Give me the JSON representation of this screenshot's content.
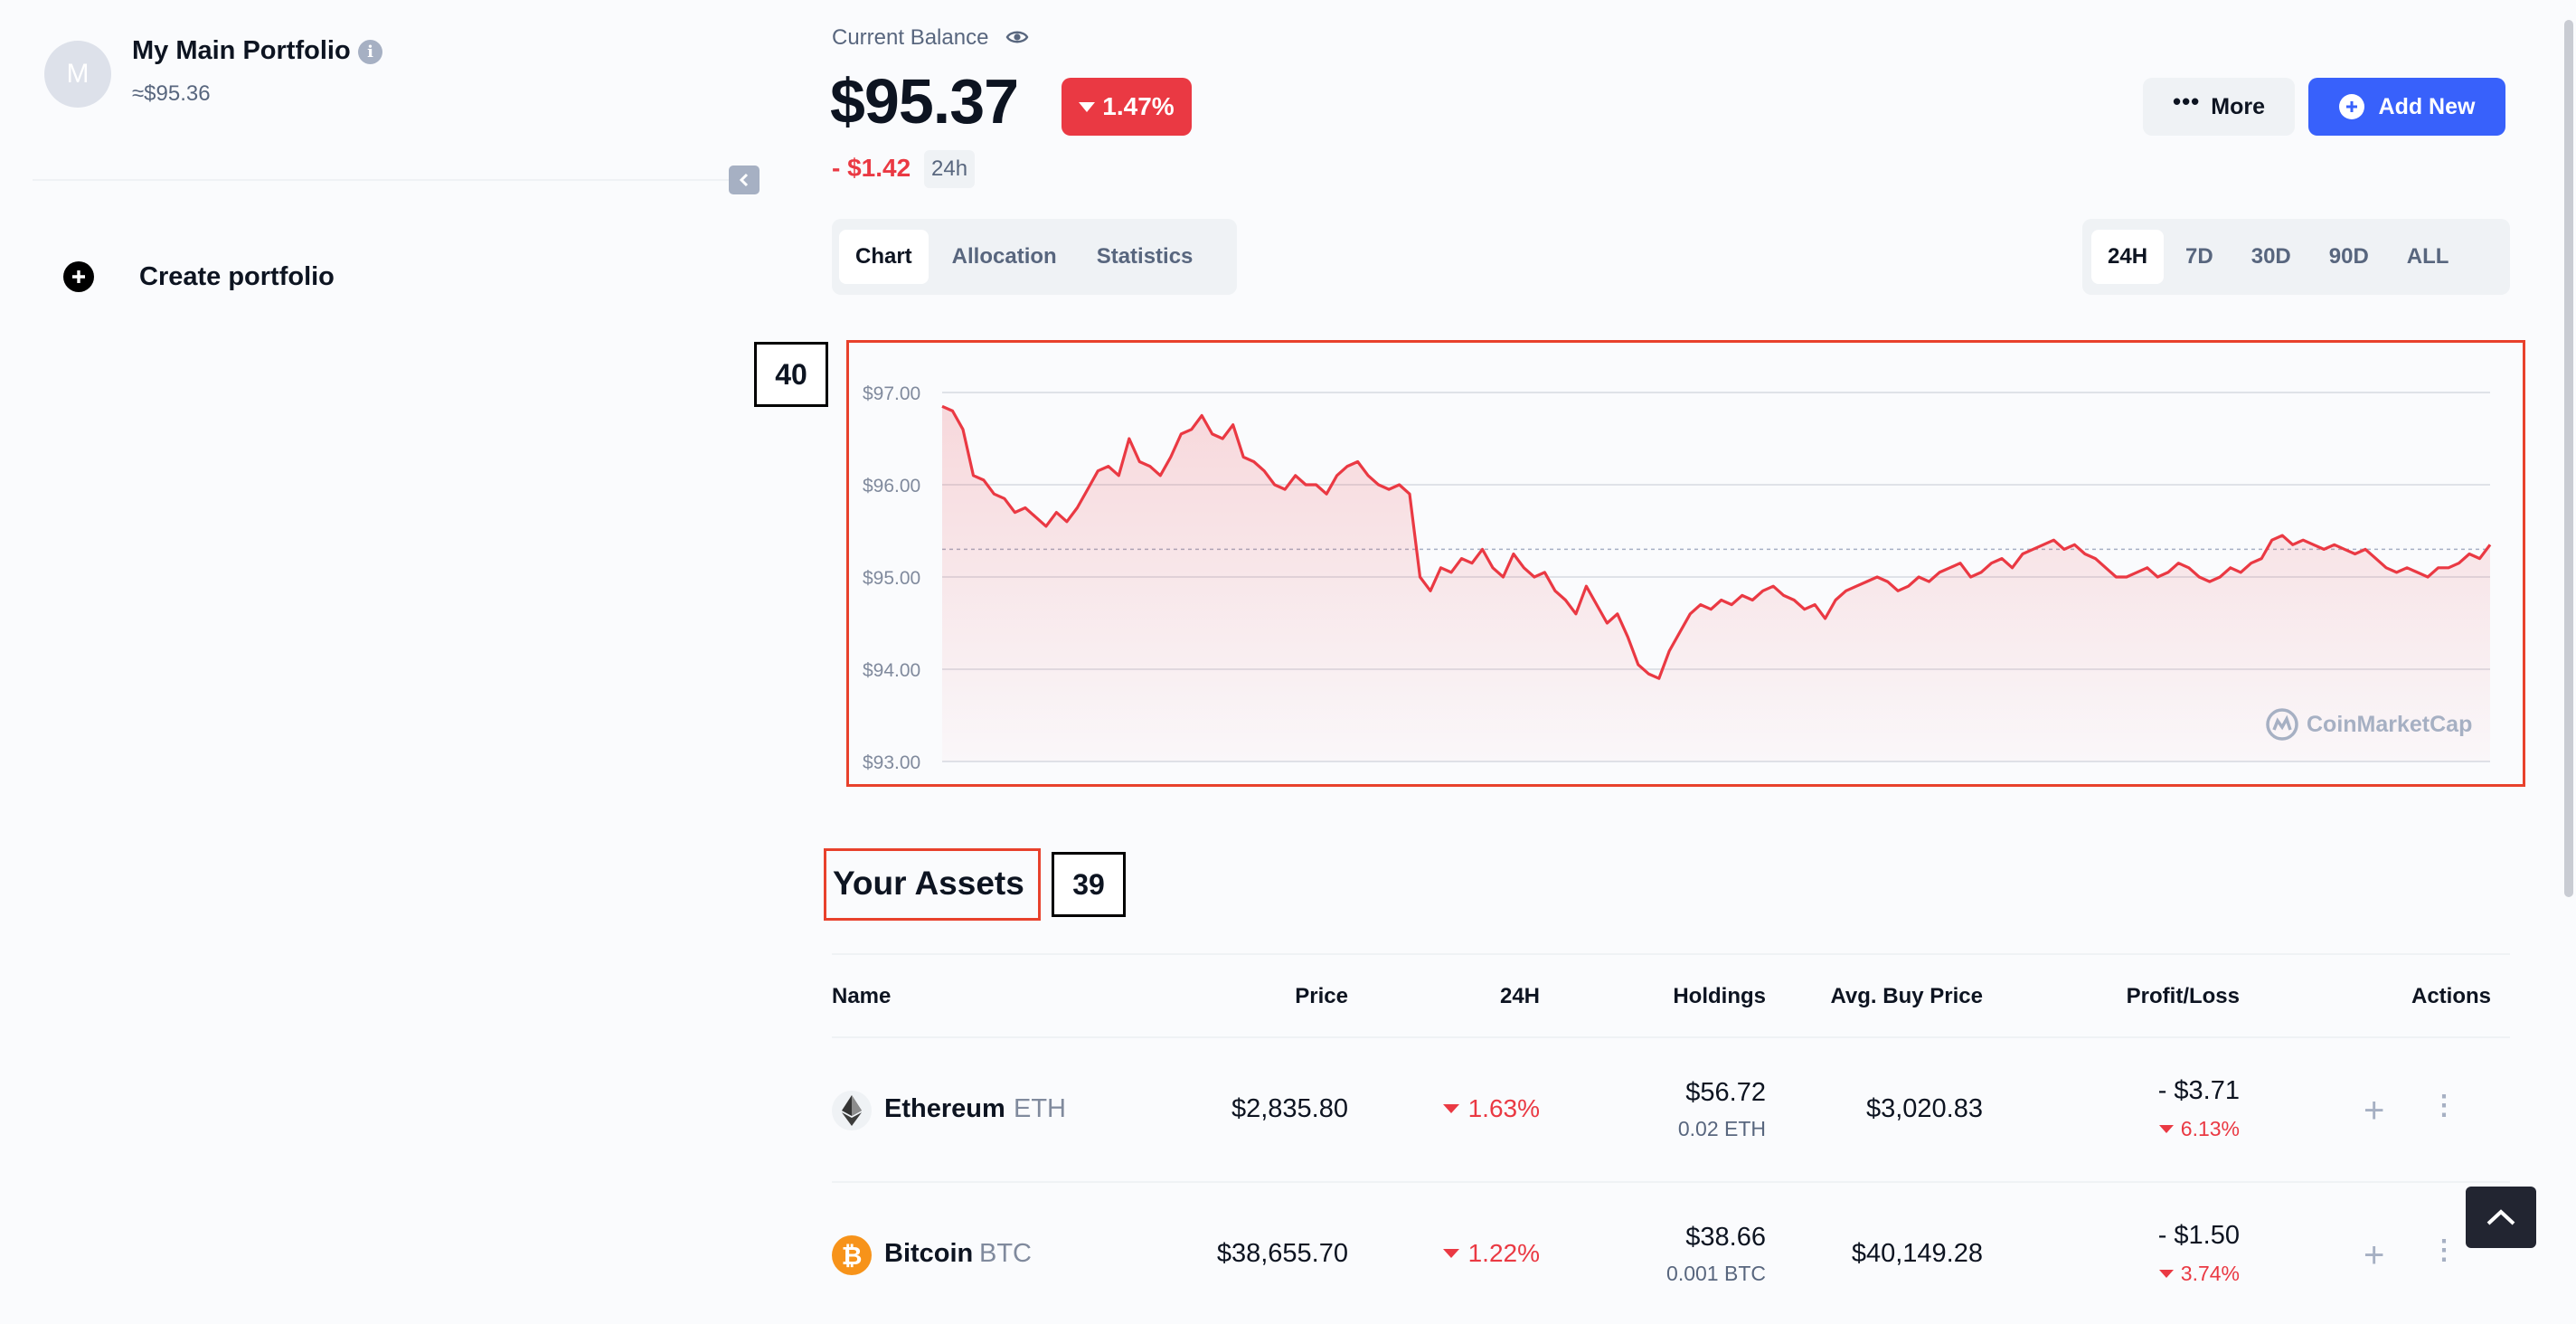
{
  "sidebar": {
    "avatar_letter": "M",
    "portfolio_name": "My Main Portfolio",
    "portfolio_value": "≈$95.36",
    "create_label": "Create portfolio",
    "info_glyph": "i"
  },
  "header": {
    "balance_label": "Current Balance",
    "balance": "$95.37",
    "change_pct": "1.47%",
    "delta": "- $1.42",
    "delta_period": "24h",
    "more_label": "More",
    "add_label": "Add New"
  },
  "tabs": [
    {
      "label": "Chart",
      "active": true
    },
    {
      "label": "Allocation",
      "active": false
    },
    {
      "label": "Statistics",
      "active": false
    }
  ],
  "ranges": [
    {
      "label": "24H",
      "active": true
    },
    {
      "label": "7D",
      "active": false
    },
    {
      "label": "30D",
      "active": false
    },
    {
      "label": "90D",
      "active": false
    },
    {
      "label": "ALL",
      "active": false
    }
  ],
  "annotations": {
    "chart_tag": "40",
    "assets_tag": "39"
  },
  "chart_data": {
    "type": "area",
    "y_ticks": [
      "$97.00",
      "$96.00",
      "$95.00",
      "$94.00",
      "$93.00"
    ],
    "ylim": [
      93,
      97
    ],
    "reference_value": 95.3,
    "color": "#ea3943",
    "watermark": "CoinMarketCap",
    "values": [
      96.85,
      96.8,
      96.6,
      96.1,
      96.05,
      95.9,
      95.85,
      95.7,
      95.75,
      95.65,
      95.55,
      95.7,
      95.6,
      95.75,
      95.95,
      96.15,
      96.2,
      96.1,
      96.5,
      96.25,
      96.2,
      96.1,
      96.3,
      96.55,
      96.6,
      96.75,
      96.55,
      96.5,
      96.65,
      96.3,
      96.25,
      96.15,
      96.0,
      95.95,
      96.1,
      96.0,
      96.0,
      95.9,
      96.1,
      96.2,
      96.25,
      96.1,
      96.0,
      95.95,
      96.0,
      95.9,
      95.0,
      94.85,
      95.1,
      95.05,
      95.2,
      95.15,
      95.3,
      95.1,
      95.0,
      95.25,
      95.1,
      95.0,
      95.05,
      94.85,
      94.75,
      94.6,
      94.9,
      94.7,
      94.5,
      94.6,
      94.35,
      94.05,
      93.95,
      93.9,
      94.2,
      94.4,
      94.6,
      94.7,
      94.65,
      94.75,
      94.7,
      94.8,
      94.75,
      94.85,
      94.9,
      94.8,
      94.75,
      94.65,
      94.7,
      94.55,
      94.75,
      94.85,
      94.9,
      94.95,
      95.0,
      94.95,
      94.85,
      94.9,
      95.0,
      94.95,
      95.05,
      95.1,
      95.15,
      95.0,
      95.05,
      95.15,
      95.2,
      95.1,
      95.25,
      95.3,
      95.35,
      95.4,
      95.3,
      95.35,
      95.25,
      95.2,
      95.1,
      95.0,
      95.0,
      95.05,
      95.1,
      95.0,
      95.05,
      95.15,
      95.1,
      95.0,
      94.95,
      95.0,
      95.1,
      95.05,
      95.15,
      95.2,
      95.4,
      95.45,
      95.35,
      95.4,
      95.35,
      95.3,
      95.35,
      95.3,
      95.25,
      95.3,
      95.2,
      95.1,
      95.05,
      95.1,
      95.05,
      95.0,
      95.1,
      95.1,
      95.15,
      95.25,
      95.2,
      95.35
    ]
  },
  "assets": {
    "title": "Your Assets",
    "columns": [
      "Name",
      "Price",
      "24H",
      "Holdings",
      "Avg. Buy Price",
      "Profit/Loss",
      "Actions"
    ],
    "rows": [
      {
        "name": "Ethereum",
        "symbol": "ETH",
        "price": "$2,835.80",
        "change": "1.63%",
        "holdings_value": "$56.72",
        "holdings_amount": "0.02 ETH",
        "avg_buy": "$3,020.83",
        "pl_value": "- $3.71",
        "pl_pct": "6.13%",
        "icon": "ethereum-icon"
      },
      {
        "name": "Bitcoin",
        "symbol": "BTC",
        "price": "$38,655.70",
        "change": "1.22%",
        "holdings_value": "$38.66",
        "holdings_amount": "0.001 BTC",
        "avg_buy": "$40,149.28",
        "pl_value": "- $1.50",
        "pl_pct": "3.74%",
        "icon": "bitcoin-icon"
      }
    ]
  }
}
